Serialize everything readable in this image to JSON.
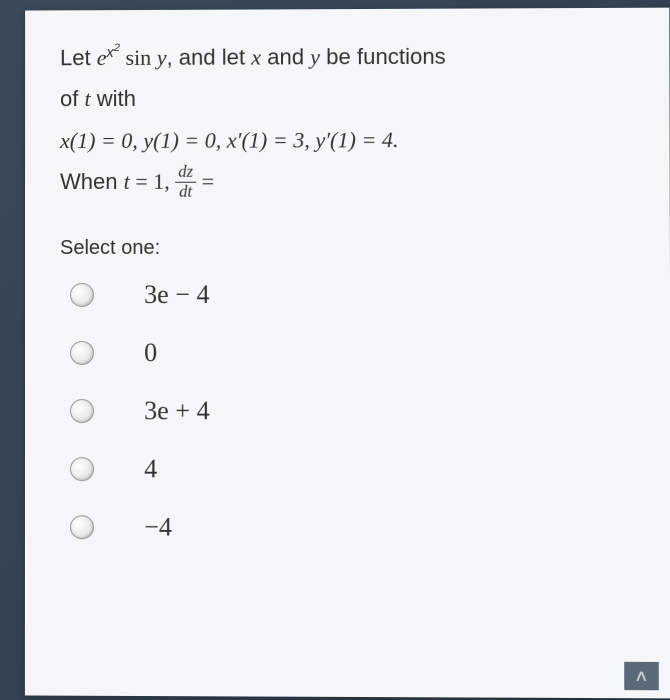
{
  "question": {
    "line1_prefix": "Let ",
    "line1_expr_e": "e",
    "line1_expr_exp_x": "x",
    "line1_expr_exp_2": "2",
    "line1_sin": " sin ",
    "line1_y": "y",
    "line1_rest": ", and let ",
    "line1_x": "x",
    "line1_and": " and ",
    "line1_y2": "y",
    "line1_be": " be functions",
    "line2_prefix": "of ",
    "line2_t": "t",
    "line2_with": " with",
    "line3": "x(1) = 0, y(1) = 0, x′(1) = 3, y′(1) = 4.",
    "line4_prefix": "When ",
    "line4_t": "t",
    "line4_eq": " = 1, ",
    "line4_frac_top": "dz",
    "line4_frac_bot": "dt",
    "line4_end": " ="
  },
  "select_label": "Select one:",
  "options": [
    {
      "text": "3e − 4"
    },
    {
      "text": "0"
    },
    {
      "text": "3e + 4"
    },
    {
      "text": "4"
    },
    {
      "text": "−4"
    }
  ],
  "colors": {
    "card_bg": "#f5f6f7",
    "text": "#333333",
    "radio_border": "#999999"
  }
}
